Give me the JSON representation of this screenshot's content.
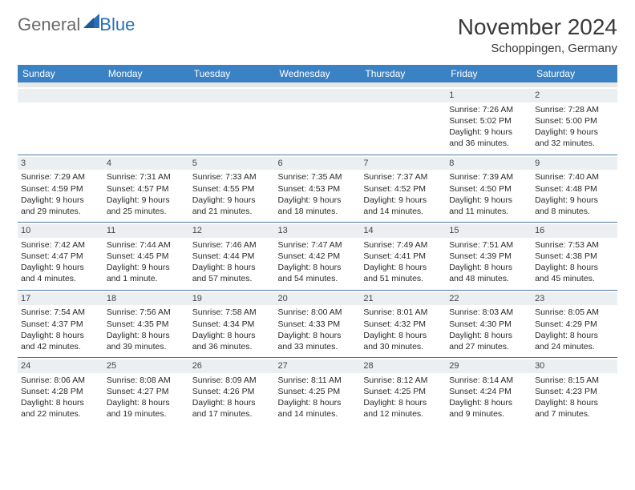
{
  "logo": {
    "text1": "General",
    "text2": "Blue",
    "iconColor": "#2a6fb5"
  },
  "title": "November 2024",
  "location": "Schoppingen, Germany",
  "headerBg": "#3b82c4",
  "dayNames": [
    "Sunday",
    "Monday",
    "Tuesday",
    "Wednesday",
    "Thursday",
    "Friday",
    "Saturday"
  ],
  "weeks": [
    [
      {
        "n": "",
        "sunrise": "",
        "sunset": "",
        "daylight": ""
      },
      {
        "n": "",
        "sunrise": "",
        "sunset": "",
        "daylight": ""
      },
      {
        "n": "",
        "sunrise": "",
        "sunset": "",
        "daylight": ""
      },
      {
        "n": "",
        "sunrise": "",
        "sunset": "",
        "daylight": ""
      },
      {
        "n": "",
        "sunrise": "",
        "sunset": "",
        "daylight": ""
      },
      {
        "n": "1",
        "sunrise": "Sunrise: 7:26 AM",
        "sunset": "Sunset: 5:02 PM",
        "daylight": "Daylight: 9 hours and 36 minutes."
      },
      {
        "n": "2",
        "sunrise": "Sunrise: 7:28 AM",
        "sunset": "Sunset: 5:00 PM",
        "daylight": "Daylight: 9 hours and 32 minutes."
      }
    ],
    [
      {
        "n": "3",
        "sunrise": "Sunrise: 7:29 AM",
        "sunset": "Sunset: 4:59 PM",
        "daylight": "Daylight: 9 hours and 29 minutes."
      },
      {
        "n": "4",
        "sunrise": "Sunrise: 7:31 AM",
        "sunset": "Sunset: 4:57 PM",
        "daylight": "Daylight: 9 hours and 25 minutes."
      },
      {
        "n": "5",
        "sunrise": "Sunrise: 7:33 AM",
        "sunset": "Sunset: 4:55 PM",
        "daylight": "Daylight: 9 hours and 21 minutes."
      },
      {
        "n": "6",
        "sunrise": "Sunrise: 7:35 AM",
        "sunset": "Sunset: 4:53 PM",
        "daylight": "Daylight: 9 hours and 18 minutes."
      },
      {
        "n": "7",
        "sunrise": "Sunrise: 7:37 AM",
        "sunset": "Sunset: 4:52 PM",
        "daylight": "Daylight: 9 hours and 14 minutes."
      },
      {
        "n": "8",
        "sunrise": "Sunrise: 7:39 AM",
        "sunset": "Sunset: 4:50 PM",
        "daylight": "Daylight: 9 hours and 11 minutes."
      },
      {
        "n": "9",
        "sunrise": "Sunrise: 7:40 AM",
        "sunset": "Sunset: 4:48 PM",
        "daylight": "Daylight: 9 hours and 8 minutes."
      }
    ],
    [
      {
        "n": "10",
        "sunrise": "Sunrise: 7:42 AM",
        "sunset": "Sunset: 4:47 PM",
        "daylight": "Daylight: 9 hours and 4 minutes."
      },
      {
        "n": "11",
        "sunrise": "Sunrise: 7:44 AM",
        "sunset": "Sunset: 4:45 PM",
        "daylight": "Daylight: 9 hours and 1 minute."
      },
      {
        "n": "12",
        "sunrise": "Sunrise: 7:46 AM",
        "sunset": "Sunset: 4:44 PM",
        "daylight": "Daylight: 8 hours and 57 minutes."
      },
      {
        "n": "13",
        "sunrise": "Sunrise: 7:47 AM",
        "sunset": "Sunset: 4:42 PM",
        "daylight": "Daylight: 8 hours and 54 minutes."
      },
      {
        "n": "14",
        "sunrise": "Sunrise: 7:49 AM",
        "sunset": "Sunset: 4:41 PM",
        "daylight": "Daylight: 8 hours and 51 minutes."
      },
      {
        "n": "15",
        "sunrise": "Sunrise: 7:51 AM",
        "sunset": "Sunset: 4:39 PM",
        "daylight": "Daylight: 8 hours and 48 minutes."
      },
      {
        "n": "16",
        "sunrise": "Sunrise: 7:53 AM",
        "sunset": "Sunset: 4:38 PM",
        "daylight": "Daylight: 8 hours and 45 minutes."
      }
    ],
    [
      {
        "n": "17",
        "sunrise": "Sunrise: 7:54 AM",
        "sunset": "Sunset: 4:37 PM",
        "daylight": "Daylight: 8 hours and 42 minutes."
      },
      {
        "n": "18",
        "sunrise": "Sunrise: 7:56 AM",
        "sunset": "Sunset: 4:35 PM",
        "daylight": "Daylight: 8 hours and 39 minutes."
      },
      {
        "n": "19",
        "sunrise": "Sunrise: 7:58 AM",
        "sunset": "Sunset: 4:34 PM",
        "daylight": "Daylight: 8 hours and 36 minutes."
      },
      {
        "n": "20",
        "sunrise": "Sunrise: 8:00 AM",
        "sunset": "Sunset: 4:33 PM",
        "daylight": "Daylight: 8 hours and 33 minutes."
      },
      {
        "n": "21",
        "sunrise": "Sunrise: 8:01 AM",
        "sunset": "Sunset: 4:32 PM",
        "daylight": "Daylight: 8 hours and 30 minutes."
      },
      {
        "n": "22",
        "sunrise": "Sunrise: 8:03 AM",
        "sunset": "Sunset: 4:30 PM",
        "daylight": "Daylight: 8 hours and 27 minutes."
      },
      {
        "n": "23",
        "sunrise": "Sunrise: 8:05 AM",
        "sunset": "Sunset: 4:29 PM",
        "daylight": "Daylight: 8 hours and 24 minutes."
      }
    ],
    [
      {
        "n": "24",
        "sunrise": "Sunrise: 8:06 AM",
        "sunset": "Sunset: 4:28 PM",
        "daylight": "Daylight: 8 hours and 22 minutes."
      },
      {
        "n": "25",
        "sunrise": "Sunrise: 8:08 AM",
        "sunset": "Sunset: 4:27 PM",
        "daylight": "Daylight: 8 hours and 19 minutes."
      },
      {
        "n": "26",
        "sunrise": "Sunrise: 8:09 AM",
        "sunset": "Sunset: 4:26 PM",
        "daylight": "Daylight: 8 hours and 17 minutes."
      },
      {
        "n": "27",
        "sunrise": "Sunrise: 8:11 AM",
        "sunset": "Sunset: 4:25 PM",
        "daylight": "Daylight: 8 hours and 14 minutes."
      },
      {
        "n": "28",
        "sunrise": "Sunrise: 8:12 AM",
        "sunset": "Sunset: 4:25 PM",
        "daylight": "Daylight: 8 hours and 12 minutes."
      },
      {
        "n": "29",
        "sunrise": "Sunrise: 8:14 AM",
        "sunset": "Sunset: 4:24 PM",
        "daylight": "Daylight: 8 hours and 9 minutes."
      },
      {
        "n": "30",
        "sunrise": "Sunrise: 8:15 AM",
        "sunset": "Sunset: 4:23 PM",
        "daylight": "Daylight: 8 hours and 7 minutes."
      }
    ]
  ]
}
